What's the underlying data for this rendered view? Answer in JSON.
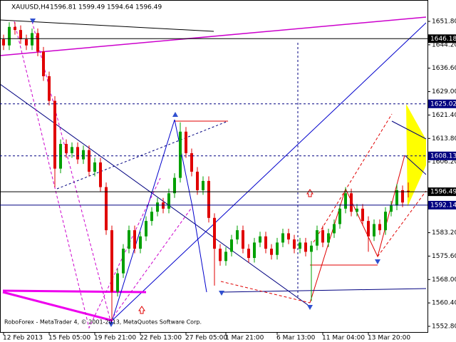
{
  "chart_data": {
    "type": "candlestick",
    "title": "XAUUSD,H4",
    "header_values": [
      1596.81,
      1599.49,
      1594.64,
      1596.49
    ],
    "footer": "RoboForex - MetaTrader 4, © 2001-2013, MetaQuotes Software Corp.",
    "up_color": "#00a000",
    "down_color": "#e00000",
    "categories": [
      "12 Feb 2013",
      null,
      null,
      null,
      null,
      null,
      null,
      null,
      "15 Feb 05:00",
      null,
      null,
      null,
      null,
      null,
      null,
      null,
      "19 Feb 21:00",
      null,
      null,
      null,
      null,
      null,
      null,
      null,
      "22 Feb 13:00",
      null,
      null,
      null,
      null,
      null,
      null,
      null,
      "27 Feb 05:00",
      null,
      null,
      null,
      null,
      null,
      null,
      "1 Mar 21:00",
      null,
      null,
      null,
      null,
      null,
      null,
      null,
      null,
      "6 Mar 13:00",
      null,
      null,
      null,
      null,
      null,
      null,
      null,
      "11 Mar 04:00",
      null,
      null,
      null,
      null,
      null,
      null,
      null,
      "13 Mar 20:00",
      null,
      null,
      null,
      null,
      null,
      null,
      null
    ],
    "open": [
      1646,
      1644,
      1650,
      1649,
      1646,
      1644,
      1648,
      1642,
      1634,
      1626,
      1604,
      1612,
      1609,
      1611,
      1607,
      1610,
      1603,
      1606,
      1598,
      1584,
      1564,
      1570,
      1578,
      1584,
      1578,
      1582,
      1587,
      1590,
      1593,
      1591,
      1596,
      1601,
      1616,
      1609,
      1603,
      1597,
      1600,
      1588,
      1578,
      1574,
      1577,
      1581,
      1584,
      1578,
      1575,
      1580,
      1582,
      1578,
      1576,
      1580,
      1583,
      1581,
      1578,
      1580,
      1577,
      1579,
      1584,
      1580,
      1583,
      1586,
      1591,
      1596,
      1590,
      1591,
      1587,
      1582,
      1586,
      1584,
      1590,
      1592,
      1597,
      1596.81
    ],
    "high": [
      1647.5,
      1651.5,
      1651.5,
      1650.5,
      1647.5,
      1649.5,
      1649.5,
      1643.5,
      1635.5,
      1627.5,
      1613.5,
      1613.5,
      1612.5,
      1612.5,
      1611.5,
      1611.5,
      1607.5,
      1607.5,
      1599.5,
      1585.5,
      1571.5,
      1579.5,
      1585.5,
      1585.5,
      1583.5,
      1588.5,
      1591.5,
      1594.5,
      1594.5,
      1597.5,
      1602.5,
      1619,
      1617.5,
      1610.5,
      1604.5,
      1601.5,
      1601.5,
      1589.5,
      1579.5,
      1578.5,
      1582.5,
      1585.5,
      1585.5,
      1579.5,
      1581.5,
      1583.5,
      1583.5,
      1579.5,
      1581.5,
      1584.5,
      1584.5,
      1582.5,
      1581.5,
      1581.5,
      1580.5,
      1585.5,
      1585.5,
      1584.5,
      1587.5,
      1592.5,
      1598,
      1597.5,
      1592.5,
      1592.5,
      1588.5,
      1587.5,
      1587.5,
      1591.5,
      1593.5,
      1599,
      1598.5,
      1599.49
    ],
    "low": [
      1642.5,
      1642.5,
      1647.5,
      1644.5,
      1642.5,
      1642.5,
      1640.5,
      1632.5,
      1624.5,
      1598,
      1602.5,
      1607.5,
      1607.5,
      1605.5,
      1605.5,
      1601.5,
      1601.5,
      1596.5,
      1582.5,
      1555,
      1562.5,
      1568.5,
      1576.5,
      1576.5,
      1576.5,
      1580.5,
      1585.5,
      1588.5,
      1589.5,
      1589.5,
      1594.5,
      1599.5,
      1607.5,
      1601.5,
      1595.5,
      1595.5,
      1586.5,
      1566,
      1572.5,
      1572.5,
      1575.5,
      1579.5,
      1576.5,
      1573.5,
      1573.5,
      1578.5,
      1576.5,
      1574.5,
      1574.5,
      1578.5,
      1579.5,
      1576.5,
      1576.5,
      1575.5,
      1561,
      1577.5,
      1578.5,
      1578.5,
      1581.5,
      1584.5,
      1589.5,
      1588.5,
      1588.5,
      1585.5,
      1577,
      1580.5,
      1582.5,
      1582.5,
      1588.5,
      1590.5,
      1591.5,
      1594.64
    ],
    "close": [
      1644,
      1650,
      1649,
      1646,
      1644,
      1648,
      1642,
      1634,
      1626,
      1604,
      1612,
      1609,
      1611,
      1607,
      1610,
      1603,
      1606,
      1598,
      1584,
      1564,
      1570,
      1578,
      1584,
      1578,
      1582,
      1587,
      1590,
      1593,
      1591,
      1596,
      1601,
      1616,
      1609,
      1603,
      1597,
      1600,
      1588,
      1578,
      1574,
      1577,
      1581,
      1584,
      1578,
      1575,
      1580,
      1582,
      1578,
      1576,
      1580,
      1583,
      1581,
      1578,
      1580,
      1577,
      1579,
      1584,
      1580,
      1583,
      1586,
      1591,
      1596,
      1590,
      1591,
      1587,
      1582,
      1586,
      1584,
      1590,
      1592,
      1597,
      1593,
      1596.49
    ],
    "ylim": [
      1550.95,
      1658.74
    ],
    "yticks": [
      {
        "value": 1651.8,
        "label": "1651.80"
      },
      {
        "value": 1644.2,
        "label": "1644.20"
      },
      {
        "value": 1636.6,
        "label": "1636.60"
      },
      {
        "value": 1629,
        "label": "1629.00"
      },
      {
        "value": 1621.4,
        "label": "1621.40"
      },
      {
        "value": 1613.8,
        "label": "1613.80"
      },
      {
        "value": 1606.2,
        "label": "1606.20"
      },
      {
        "value": 1583.2,
        "label": "1583.20"
      },
      {
        "value": 1575.6,
        "label": "1575.60"
      },
      {
        "value": 1568,
        "label": "1568.00"
      },
      {
        "value": 1560.4,
        "label": "1560.40"
      },
      {
        "value": 1552.8,
        "label": "1552.80"
      }
    ],
    "levels": [
      {
        "value": 1646.18,
        "color": "#000000",
        "dashed": false
      },
      {
        "value": 1625.02,
        "color": "#000080",
        "dashed": true
      },
      {
        "value": 1608.13,
        "color": "#000080",
        "dashed": true
      },
      {
        "value": 1596.49,
        "color": "#000000",
        "dashed": false
      },
      {
        "value": 1592.14,
        "color": "#000080",
        "dashed": false
      }
    ]
  }
}
